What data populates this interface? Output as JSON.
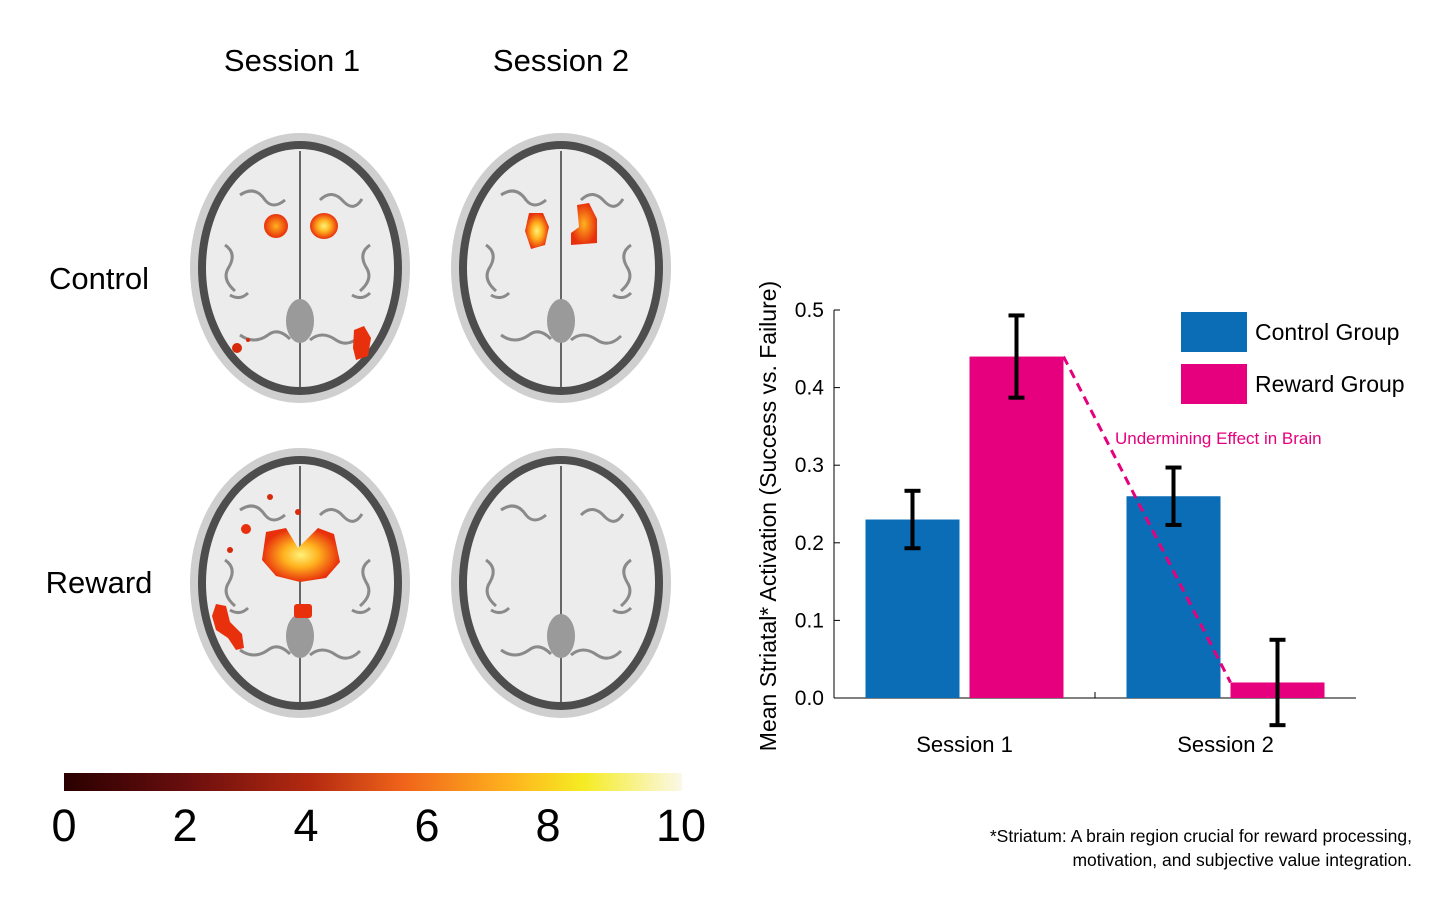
{
  "brain_figure": {
    "column_titles": [
      "Session 1",
      "Session 2"
    ],
    "row_titles": [
      "Control",
      "Reward"
    ],
    "panels": [
      {
        "row": "Control",
        "session": "Session 1",
        "activation": "bilateral striatum moderate, occipital spots"
      },
      {
        "row": "Control",
        "session": "Session 2",
        "activation": "bilateral striatum moderate-high"
      },
      {
        "row": "Reward",
        "session": "Session 1",
        "activation": "strong striatal activation, left occipital spots"
      },
      {
        "row": "Reward",
        "session": "Session 2",
        "activation": "none"
      }
    ],
    "colorbar": {
      "ticks": [
        "0",
        "2",
        "4",
        "6",
        "8",
        "10"
      ],
      "colors": [
        "#2a0000",
        "#6a0e0e",
        "#b42a10",
        "#f0641a",
        "#ffb21e",
        "#f5ec22",
        "#fbf8e8"
      ]
    }
  },
  "chart_data": {
    "type": "bar",
    "categories": [
      "Session 1",
      "Session 2"
    ],
    "series": [
      {
        "name": "Control Group",
        "color": "#0a6db5",
        "values": [
          0.23,
          0.26
        ],
        "errors": [
          0.037,
          0.037
        ]
      },
      {
        "name": "Reward Group",
        "color": "#e6007e",
        "values": [
          0.44,
          0.02
        ],
        "errors": [
          0.053,
          0.055
        ]
      }
    ],
    "ylabel": "Mean Striatal* Activation (Success vs. Failure)",
    "xlabel": "",
    "ylim": [
      0,
      0.5
    ],
    "yticks": [
      "0.0",
      "0.1",
      "0.2",
      "0.3",
      "0.4",
      "0.5"
    ],
    "legend_position": "top-right",
    "annotation": {
      "text": "Undermining Effect in Brain",
      "color": "#e6007e",
      "from": {
        "category": "Session 1",
        "value": 0.44
      },
      "to": {
        "category": "Session 2",
        "value": 0.02
      }
    }
  },
  "footnote": {
    "line1": "*Striatum: A brain region crucial for reward processing,",
    "line2": "motivation, and subjective value integration."
  }
}
